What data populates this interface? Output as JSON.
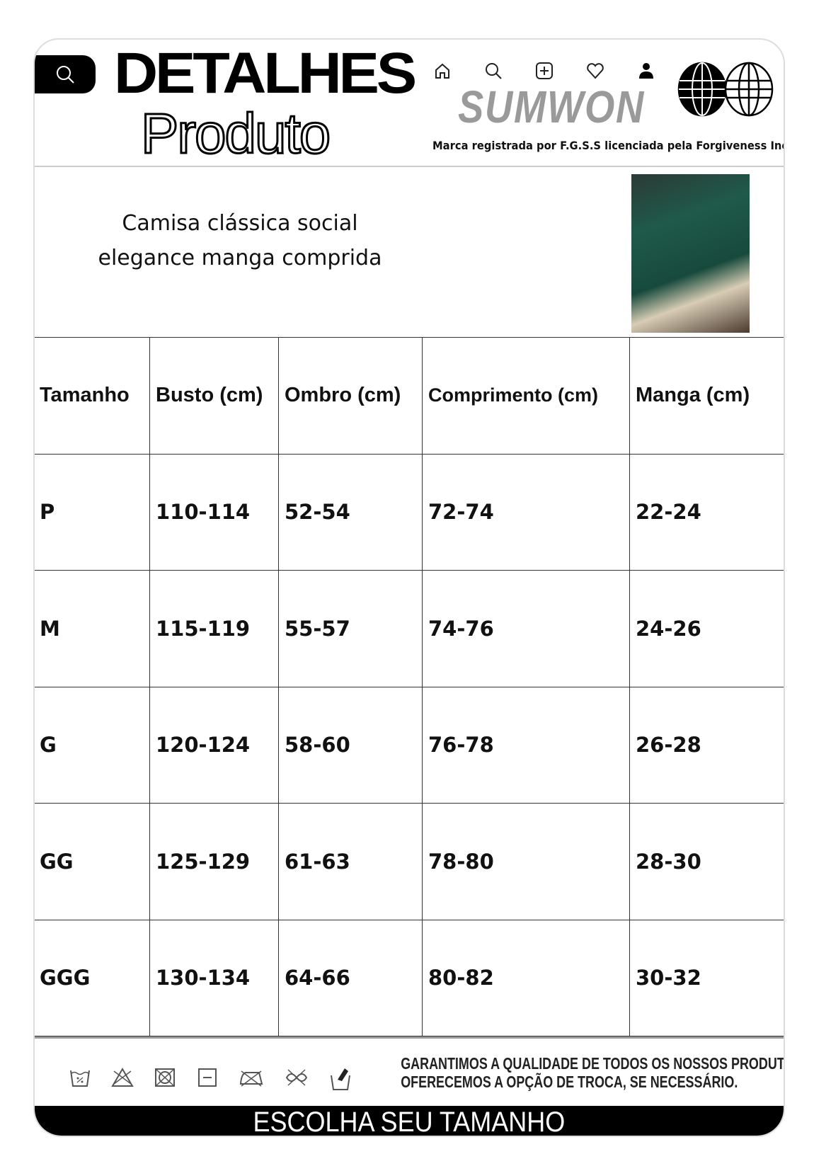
{
  "header": {
    "title_line1": "DETALHES",
    "title_line2": "Produto",
    "brand": "SUMWON",
    "trademark": "Marca registrada por F.G.S.S licenciada pela Forgiveness Inc",
    "nav_icons": [
      "home-icon",
      "search-icon",
      "add-icon",
      "heart-icon",
      "user-icon"
    ],
    "search_icon": "search-icon",
    "logo": "globes-logo"
  },
  "product": {
    "description_line1": "Camisa clássica social",
    "description_line2": "elegance manga comprida"
  },
  "size_table": {
    "headers": [
      "Tamanho",
      "Busto (cm)",
      "Ombro (cm)",
      "Comprimento (cm)",
      "Manga (cm)"
    ],
    "rows": [
      [
        "P",
        "110-114",
        "52-54",
        "72-74",
        "22-24"
      ],
      [
        "M",
        "115-119",
        "55-57",
        "74-76",
        "24-26"
      ],
      [
        "G",
        "120-124",
        "58-60",
        "76-78",
        "26-28"
      ],
      [
        "GG",
        "125-129",
        "61-63",
        "78-80",
        "28-30"
      ],
      [
        "GGG",
        "130-134",
        "64-66",
        "80-82",
        "30-32"
      ]
    ]
  },
  "footer": {
    "guarantee_line1": "GARANTIMOS A QUALIDADE DE TODOS OS NOSSOS PRODUTOS E",
    "guarantee_line2": "OFERECEMOS A OPÇÃO DE TROCA, SE NECESSÁRIO.",
    "care_icons": [
      "wash-30-icon",
      "no-bleach-icon",
      "no-tumble-dry-icon",
      "dry-flat-icon",
      "no-iron-icon",
      "no-dry-clean-icon",
      "hand-wash-icon"
    ],
    "banner": "ESCOLHA SEU TAMANHO"
  }
}
